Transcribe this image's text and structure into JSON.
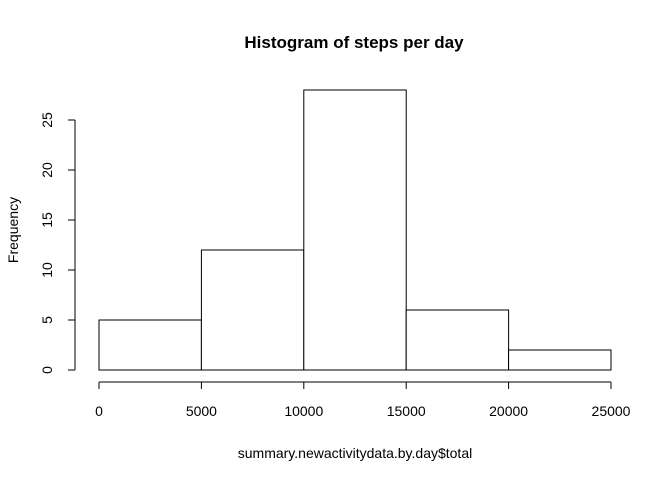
{
  "chart_data": {
    "type": "bar",
    "title": "Histogram of steps per day",
    "xlabel": "summary.newactivitydata.by.day$total",
    "ylabel": "Frequency",
    "bins": [
      {
        "from": 0,
        "to": 5000,
        "count": 5
      },
      {
        "from": 5000,
        "to": 10000,
        "count": 12
      },
      {
        "from": 10000,
        "to": 15000,
        "count": 28
      },
      {
        "from": 15000,
        "to": 20000,
        "count": 6
      },
      {
        "from": 20000,
        "to": 25000,
        "count": 2
      }
    ],
    "xticks": [
      0,
      5000,
      10000,
      15000,
      20000,
      25000
    ],
    "yticks": [
      0,
      5,
      10,
      15,
      20,
      25
    ],
    "xlim": [
      0,
      25000
    ],
    "ylim": [
      0,
      28
    ],
    "grid": false
  }
}
